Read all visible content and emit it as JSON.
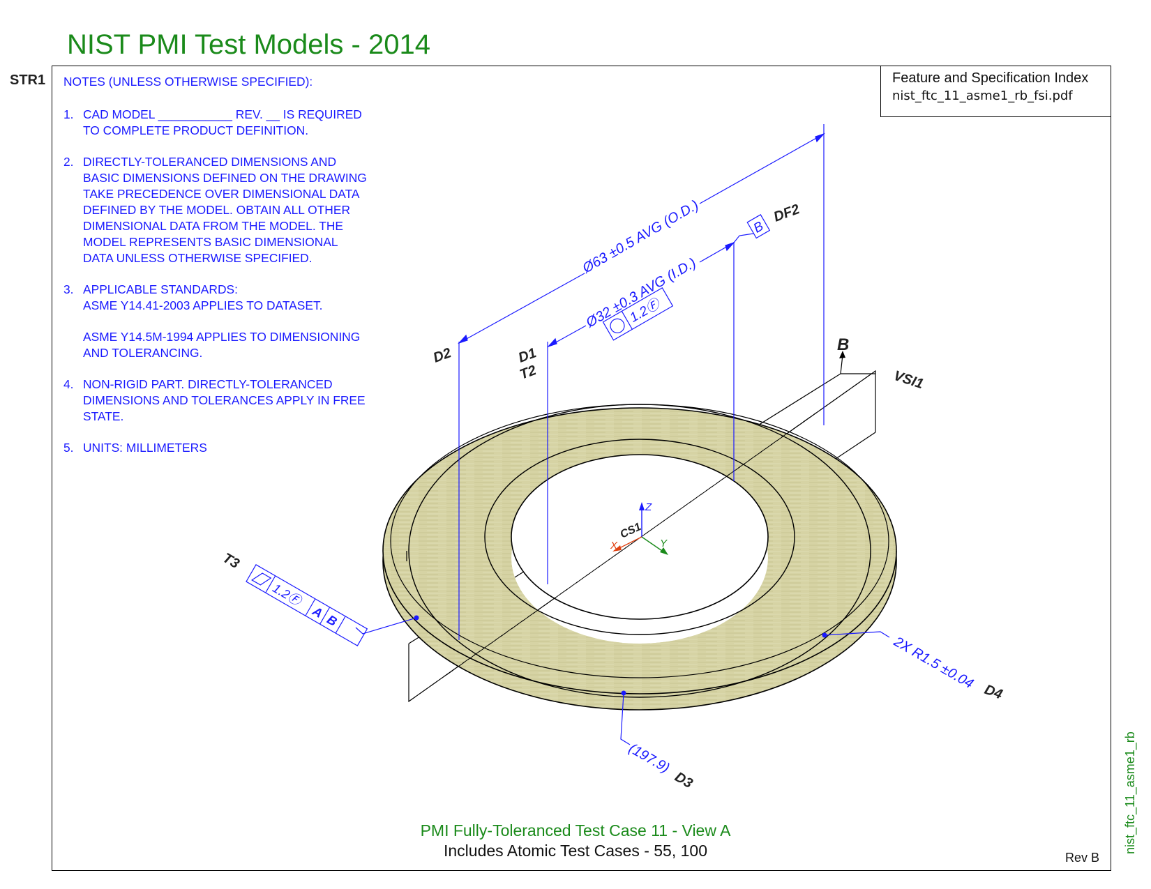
{
  "page": {
    "title": "NIST PMI Test Models - 2014",
    "sheet_id": "STR1",
    "side_tag": "nist_ftc_11_asme1_rb",
    "rev": "Rev B",
    "caption_line1": "PMI Fully-Toleranced Test Case 11 - View A",
    "caption_line2": "Includes Atomic Test Cases - 55, 100"
  },
  "fsi": {
    "title": "Feature and Specification Index",
    "file": "nist_ftc_11_asme1_rb_fsi.pdf"
  },
  "notes": {
    "header": "NOTES (UNLESS OTHERWISE SPECIFIED):",
    "items": [
      {
        "num": "1.",
        "text": "CAD MODEL ___________ REV. __ IS REQUIRED TO COMPLETE PRODUCT DEFINITION."
      },
      {
        "num": "2.",
        "text": "DIRECTLY-TOLERANCED DIMENSIONS AND BASIC DIMENSIONS DEFINED ON THE DRAWING TAKE PRECEDENCE OVER DIMENSIONAL DATA DEFINED BY THE MODEL.  OBTAIN ALL OTHER DIMENSIONAL DATA FROM THE MODEL. THE MODEL REPRESENTS BASIC DIMENSIONAL DATA UNLESS OTHERWISE SPECIFIED."
      },
      {
        "num": "3.",
        "text": "APPLICABLE STANDARDS:",
        "sub": [
          "ASME Y14.41-2003 APPLIES TO DATASET.",
          "ASME Y14.5M-1994 APPLIES TO DIMENSIONING AND TOLERANCING."
        ]
      },
      {
        "num": "4.",
        "text": "NON-RIGID PART.  DIRECTLY-TOLERANCED DIMENSIONS AND TOLERANCES APPLY IN FREE STATE."
      },
      {
        "num": "5.",
        "text": "UNITS: MILLIMETERS"
      }
    ]
  },
  "annotations": {
    "od_dim": "Ø63 ±0.5 AVG (O.D.)",
    "id_dim": "Ø32 ±0.3 AVG (I.D.)",
    "id_fcf_tol": "1.2Ⓕ",
    "datum_b": "B",
    "df2": "DF2",
    "d2": "D2",
    "d1": "D1",
    "t2": "T2",
    "vsi1": "VSI1",
    "datum_plane_b": "B",
    "t3": "T3",
    "t3_fcf_tol": "1.2Ⓕ",
    "t3_fcf_a": "A",
    "t3_fcf_b": "B",
    "radius": "2X R1.5 ±0.04",
    "d4": "D4",
    "ref_dim": "(197.9)",
    "d3": "D3",
    "cs1": "CS1",
    "axis_x": "X",
    "axis_y": "Y",
    "axis_z": "Z"
  },
  "colors": {
    "title_green": "#1a8a1a",
    "pmi_blue": "#1a1aff",
    "part_fill": "#d6d3a4",
    "axis_x": "#e04010",
    "axis_y": "#1a8a1a",
    "axis_z": "#1a1aff"
  }
}
